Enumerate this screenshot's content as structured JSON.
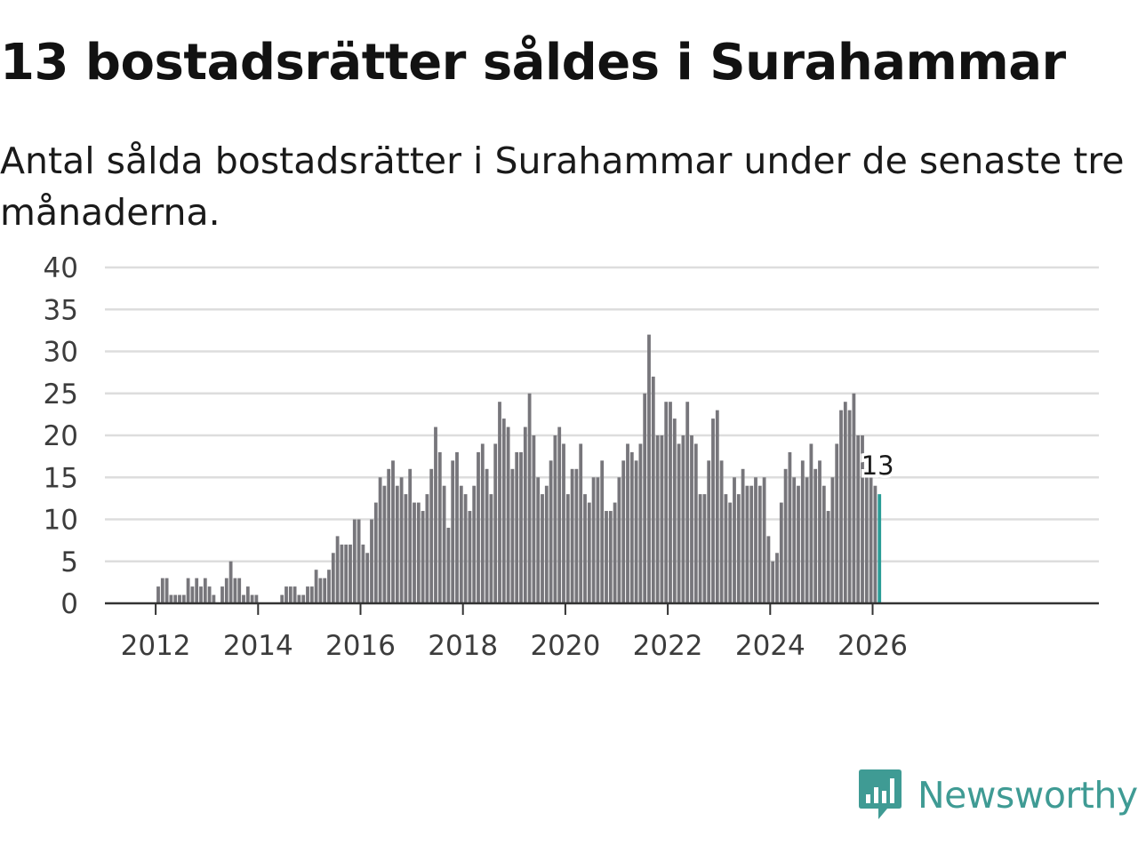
{
  "title": "13 bostadsrätter såldes i Surahammar",
  "subtitle": "Antal sålda bostadsrätter i Surahammar under de senaste tre månaderna.",
  "brand": {
    "name": "Newsworthy",
    "color": "#3f9b94"
  },
  "colors": {
    "bar": "#77767b",
    "highlight": "#2a9d97",
    "grid": "#dddddd",
    "axis": "#333333"
  },
  "chart_data": {
    "type": "bar",
    "title": "13 bostadsrätter såldes i Surahammar",
    "xlabel": "",
    "ylabel": "",
    "ylim": [
      0,
      40
    ],
    "yticks": [
      0,
      5,
      10,
      15,
      20,
      25,
      30,
      35,
      40
    ],
    "xticks": [
      "2012",
      "2014",
      "2016",
      "2018",
      "2020",
      "2022",
      "2024",
      "2026"
    ],
    "grid": true,
    "start": "2011-01",
    "end_label": "13",
    "series": [
      {
        "name": "Antal sålda bostadsrätter",
        "values": [
          0,
          0,
          0,
          0,
          0,
          0,
          0,
          0,
          0,
          0,
          0,
          0,
          2,
          3,
          3,
          1,
          1,
          1,
          1,
          3,
          2,
          3,
          2,
          3,
          2,
          1,
          0,
          2,
          3,
          5,
          3,
          3,
          1,
          2,
          1,
          1,
          0,
          0,
          0,
          0,
          0,
          1,
          2,
          2,
          2,
          1,
          1,
          2,
          2,
          4,
          3,
          3,
          4,
          6,
          8,
          7,
          7,
          7,
          10,
          10,
          7,
          6,
          10,
          12,
          15,
          14,
          16,
          17,
          14,
          15,
          13,
          16,
          12,
          12,
          11,
          13,
          16,
          21,
          18,
          14,
          9,
          17,
          18,
          14,
          13,
          11,
          14,
          18,
          19,
          16,
          13,
          19,
          24,
          22,
          21,
          16,
          18,
          18,
          21,
          25,
          20,
          15,
          13,
          14,
          17,
          20,
          21,
          19,
          13,
          16,
          16,
          19,
          13,
          12,
          15,
          15,
          17,
          11,
          11,
          12,
          15,
          17,
          19,
          18,
          17,
          19,
          25,
          32,
          27,
          20,
          20,
          24,
          24,
          22,
          19,
          20,
          24,
          20,
          19,
          13,
          13,
          17,
          22,
          23,
          17,
          13,
          12,
          15,
          13,
          16,
          14,
          14,
          15,
          14,
          15,
          8,
          5,
          6,
          12,
          16,
          18,
          15,
          14,
          17,
          15,
          19,
          16,
          17,
          14,
          11,
          15,
          19,
          23,
          24,
          23,
          25,
          20,
          20,
          16,
          15,
          14,
          13
        ]
      }
    ]
  }
}
